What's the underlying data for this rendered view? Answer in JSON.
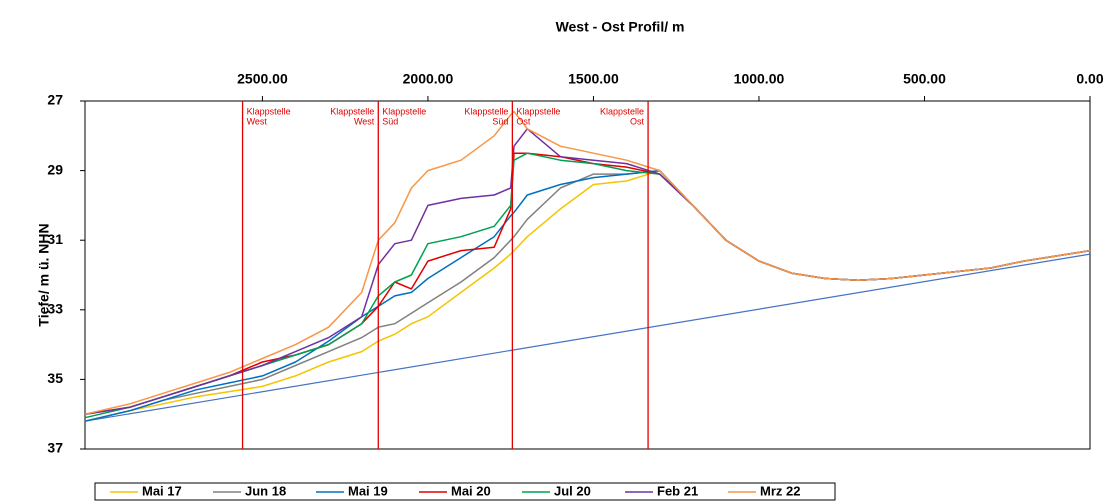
{
  "chart_data": {
    "type": "line",
    "title": "West - Ost Profil/ m",
    "y_label": "Tiefe/ m ü. NHN",
    "xlim": [
      3036,
      0
    ],
    "ylim": [
      27,
      37
    ],
    "xticks": [
      {
        "value": 2500,
        "label": "2500.00"
      },
      {
        "value": 2000,
        "label": "2000.00"
      },
      {
        "value": 1500,
        "label": "1500.00"
      },
      {
        "value": 1000,
        "label": "1000.00"
      },
      {
        "value": 500,
        "label": "500.00"
      },
      {
        "value": 0,
        "label": "0.00"
      }
    ],
    "yticks": [
      27,
      29,
      31,
      33,
      35,
      37
    ],
    "x": [
      3036,
      2900,
      2800,
      2700,
      2600,
      2500,
      2400,
      2300,
      2200,
      2150,
      2100,
      2050,
      2000,
      1900,
      1800,
      1750,
      1740,
      1700,
      1600,
      1500,
      1400,
      1300,
      1200,
      1100,
      1000,
      900,
      800,
      700,
      600,
      500,
      400,
      300,
      200,
      100,
      0
    ],
    "series": [
      {
        "name": "Mai 17",
        "color": "#f5c400",
        "values": [
          36.2,
          35.9,
          35.7,
          35.5,
          35.35,
          35.2,
          34.9,
          34.5,
          34.2,
          33.9,
          33.7,
          33.4,
          33.2,
          32.5,
          31.8,
          31.4,
          31.3,
          30.9,
          30.1,
          29.4,
          29.3,
          29.0,
          30.0,
          31.0,
          31.6,
          31.95,
          32.1,
          32.15,
          32.1,
          32.0,
          31.9,
          31.8,
          31.6,
          31.45,
          31.3
        ]
      },
      {
        "name": "Jun 18",
        "color": "#808080",
        "values": [
          36.2,
          35.9,
          35.6,
          35.4,
          35.2,
          35.0,
          34.6,
          34.2,
          33.8,
          33.5,
          33.4,
          33.1,
          32.8,
          32.2,
          31.5,
          31.0,
          30.9,
          30.4,
          29.5,
          29.1,
          29.1,
          29.0,
          30.0,
          31.0,
          31.6,
          31.95,
          32.1,
          32.15,
          32.1,
          32.0,
          31.9,
          31.8,
          31.6,
          31.45,
          31.3
        ]
      },
      {
        "name": "Mai 19",
        "color": "#0070c0",
        "values": [
          36.2,
          35.9,
          35.6,
          35.3,
          35.1,
          34.9,
          34.5,
          33.9,
          33.2,
          32.9,
          32.6,
          32.5,
          32.1,
          31.5,
          30.9,
          30.3,
          30.2,
          29.7,
          29.4,
          29.2,
          29.1,
          29.0,
          30.0,
          31.0,
          31.6,
          31.95,
          32.1,
          32.15,
          32.1,
          32.0,
          31.9,
          31.8,
          31.6,
          31.45,
          31.3
        ]
      },
      {
        "name": "Mai 20",
        "color": "#e00000",
        "values": [
          36.0,
          35.8,
          35.5,
          35.2,
          34.9,
          34.5,
          34.3,
          34.0,
          33.4,
          32.9,
          32.2,
          32.4,
          31.6,
          31.3,
          31.2,
          30.1,
          28.5,
          28.5,
          28.6,
          28.8,
          28.9,
          29.1,
          30.0,
          31.0,
          31.6,
          31.95,
          32.1,
          32.15,
          32.1,
          32.0,
          31.9,
          31.8,
          31.6,
          31.45,
          31.3
        ]
      },
      {
        "name": "Jul 20",
        "color": "#00a050",
        "values": [
          36.1,
          35.8,
          35.5,
          35.2,
          34.9,
          34.6,
          34.3,
          34.0,
          33.4,
          32.6,
          32.2,
          32.0,
          31.1,
          30.9,
          30.6,
          30.0,
          28.7,
          28.5,
          28.7,
          28.8,
          29.0,
          29.1,
          30.0,
          31.0,
          31.6,
          31.95,
          32.1,
          32.15,
          32.1,
          32.0,
          31.9,
          31.8,
          31.6,
          31.45,
          31.3
        ]
      },
      {
        "name": "Feb 21",
        "color": "#7030a0",
        "values": [
          36.0,
          35.8,
          35.5,
          35.2,
          34.9,
          34.6,
          34.2,
          33.8,
          33.2,
          31.7,
          31.1,
          31.0,
          30.0,
          29.8,
          29.7,
          29.5,
          28.3,
          27.8,
          28.6,
          28.7,
          28.8,
          29.1,
          30.0,
          31.0,
          31.6,
          31.95,
          32.1,
          32.15,
          32.1,
          32.0,
          31.9,
          31.8,
          31.6,
          31.45,
          31.3
        ]
      },
      {
        "name": "Mrz 22",
        "color": "#f79646",
        "values": [
          36.0,
          35.7,
          35.4,
          35.1,
          34.8,
          34.4,
          34.0,
          33.5,
          32.5,
          31.0,
          30.5,
          29.5,
          29.0,
          28.7,
          28.0,
          27.4,
          27.3,
          27.8,
          28.3,
          28.5,
          28.7,
          29.0,
          30.0,
          31.0,
          31.6,
          31.95,
          32.1,
          32.15,
          32.1,
          32.0,
          31.9,
          31.8,
          31.6,
          31.45,
          31.3
        ]
      }
    ],
    "reference_line": {
      "x": [
        3036,
        0
      ],
      "values": [
        36.2,
        31.4
      ],
      "color": "#4472c4"
    },
    "vlines_color": "#e00000",
    "vlines": [
      {
        "x": 2560,
        "right": [
          "Klappstelle",
          "West"
        ]
      },
      {
        "x": 2150,
        "left": [
          "Klappstelle",
          "West"
        ],
        "right": [
          "Klappstelle",
          "Süd"
        ]
      },
      {
        "x": 1745,
        "left": [
          "Klappstelle",
          "Süd"
        ],
        "right": [
          "Klappstelle",
          "Ost"
        ]
      },
      {
        "x": 1335,
        "left": [
          "Klappstelle",
          "Ost"
        ]
      }
    ]
  }
}
